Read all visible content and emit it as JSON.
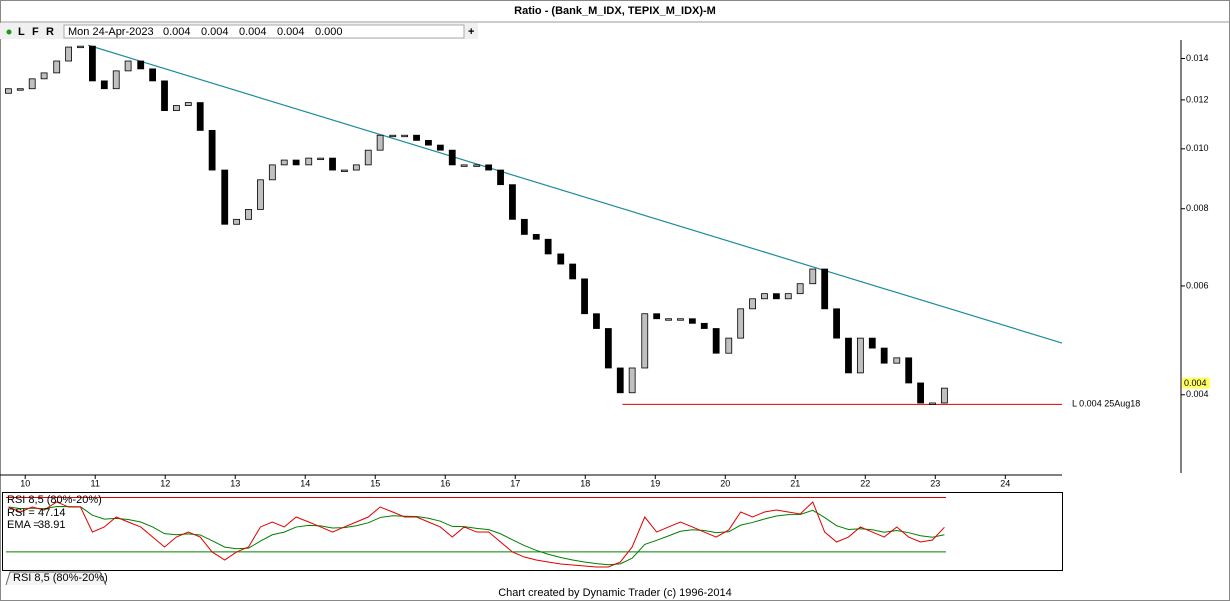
{
  "window_title": "Ratio - (Bank_M_IDX, TEPIX_M_IDX)-M",
  "info_bar": {
    "flags": [
      "L",
      "F",
      "R"
    ],
    "date": "Mon 24-Apr-2023",
    "values": [
      "0.004",
      "0.004",
      "0.004",
      "0.004",
      "0.000"
    ]
  },
  "tabs": [
    "RSI 8,5 (80%-20%)"
  ],
  "footer": "Chart created by Dynamic Trader  (c) 1996-2014",
  "chart_data": [
    {
      "type": "candlestick",
      "log_scale": true,
      "up_color": "#c0c0c0",
      "down_color": "#000000",
      "xlim": [
        9.64,
        24.81
      ],
      "xticks": [
        10,
        11,
        12,
        13,
        14,
        15,
        16,
        17,
        18,
        19,
        20,
        21,
        22,
        23,
        24
      ],
      "ylim": [
        0.003,
        0.015
      ],
      "yticks": [
        0.004,
        0.006,
        0.008,
        {
          "value": 0.01,
          "label": "0.010"
        },
        0.012,
        0.014
      ],
      "x": [
        9.76,
        9.93,
        10.1,
        10.27,
        10.45,
        10.62,
        10.79,
        10.96,
        11.13,
        11.3,
        11.47,
        11.65,
        11.82,
        11.99,
        12.16,
        12.33,
        12.5,
        12.67,
        12.85,
        13.02,
        13.19,
        13.36,
        13.53,
        13.7,
        13.87,
        14.05,
        14.22,
        14.39,
        14.56,
        14.73,
        14.9,
        15.07,
        15.25,
        15.42,
        15.59,
        15.76,
        15.93,
        16.1,
        16.27,
        16.45,
        16.62,
        16.79,
        16.96,
        17.13,
        17.3,
        17.47,
        17.65,
        17.82,
        17.99,
        18.16,
        18.33,
        18.5,
        18.67,
        18.85,
        19.02,
        19.19,
        19.36,
        19.53,
        19.7,
        19.87,
        20.05,
        20.22,
        20.39,
        20.56,
        20.73,
        20.9,
        21.07,
        21.25,
        21.42,
        21.59,
        21.76,
        21.93,
        22.1,
        22.27,
        22.45,
        22.62,
        22.79,
        22.96,
        23.13
      ],
      "open": [
        0.0123,
        0.01251,
        0.01251,
        0.01298,
        0.01327,
        0.01387,
        0.01461,
        0.01466,
        0.01288,
        0.01251,
        0.01337,
        0.01387,
        0.01347,
        0.01288,
        0.01153,
        0.01175,
        0.01188,
        0.01071,
        0.00924,
        0.00755,
        0.00769,
        0.00798,
        0.00891,
        0.00942,
        0.00959,
        0.00942,
        0.00966,
        0.00966,
        0.00924,
        0.00924,
        0.00942,
        0.00995,
        0.01052,
        0.01052,
        0.01052,
        0.01032,
        0.01014,
        0.00995,
        0.00942,
        0.00942,
        0.00942,
        0.00924,
        0.00875,
        0.00769,
        0.00727,
        0.00714,
        0.00676,
        0.00651,
        0.00616,
        0.00541,
        0.00512,
        0.00442,
        0.00403,
        0.00442,
        0.00541,
        0.00531,
        0.00531,
        0.00531,
        0.00522,
        0.00512,
        0.00467,
        0.00494,
        0.00551,
        0.00572,
        0.00583,
        0.00572,
        0.00583,
        0.00605,
        0.00639,
        0.00551,
        0.00494,
        0.00434,
        0.00494,
        0.00476,
        0.0045,
        0.00459,
        0.00418,
        0.00388,
        0.00388
      ],
      "close": [
        0.01251,
        0.01251,
        0.01298,
        0.01327,
        0.01387,
        0.01461,
        0.01466,
        0.01288,
        0.01251,
        0.01337,
        0.01387,
        0.01347,
        0.01288,
        0.01153,
        0.01175,
        0.01188,
        0.01071,
        0.00924,
        0.00755,
        0.00769,
        0.00798,
        0.00891,
        0.00942,
        0.00959,
        0.00942,
        0.00966,
        0.00966,
        0.00924,
        0.00924,
        0.00942,
        0.00995,
        0.01052,
        0.01052,
        0.01052,
        0.01032,
        0.01014,
        0.00995,
        0.00942,
        0.00942,
        0.00942,
        0.00924,
        0.00875,
        0.00769,
        0.00727,
        0.00714,
        0.00676,
        0.00651,
        0.00616,
        0.00541,
        0.00512,
        0.00442,
        0.00403,
        0.00442,
        0.00541,
        0.00531,
        0.00531,
        0.00531,
        0.00522,
        0.00512,
        0.00467,
        0.00494,
        0.00551,
        0.00572,
        0.00583,
        0.00572,
        0.00583,
        0.00605,
        0.00639,
        0.00551,
        0.00494,
        0.00434,
        0.00494,
        0.00476,
        0.0045,
        0.00459,
        0.00418,
        0.00388,
        0.00388,
        0.0041
      ],
      "trendline": {
        "color": "#1b8c9c",
        "points": [
          [
            10.9,
            0.01471
          ],
          [
            24.81,
            0.00485
          ]
        ]
      },
      "support": {
        "value": 0.00386,
        "start": 18.53,
        "color": "#e00000",
        "label": "L 0.004 25Aug18"
      },
      "last_price": {
        "value": 0.00417,
        "label": "0.004",
        "color": "#ffff66"
      }
    },
    {
      "type": "line",
      "title": "RSI 8,5 (80%-20%)",
      "ylim": [
        0,
        85
      ],
      "levels": [
        {
          "value": 80,
          "color": "#e00000"
        },
        {
          "value": 20,
          "color": "#008000"
        }
      ],
      "series": [
        {
          "name": "RSI =",
          "color": "#e00000",
          "values": [
            69.5,
            64.0,
            69.5,
            66.2,
            75.1,
            69.5,
            69.5,
            41.9,
            47.5,
            58.5,
            53.0,
            47.5,
            36.4,
            25.4,
            36.4,
            41.9,
            36.4,
            19.9,
            11.0,
            19.9,
            25.4,
            47.5,
            53.0,
            47.5,
            58.5,
            53.0,
            47.5,
            41.9,
            47.5,
            53.0,
            58.5,
            69.5,
            64.0,
            58.5,
            58.5,
            53.0,
            47.5,
            36.4,
            47.5,
            41.9,
            41.9,
            30.9,
            19.9,
            14.3,
            11.0,
            8.8,
            6.6,
            5.5,
            4.4,
            3.3,
            3.3,
            8.8,
            25.4,
            58.5,
            41.9,
            47.5,
            53.0,
            47.5,
            41.9,
            36.4,
            44.2,
            64.0,
            58.5,
            64.0,
            66.2,
            64.0,
            61.8,
            75.1,
            41.9,
            30.9,
            36.4,
            47.5,
            41.9,
            36.4,
            47.5,
            36.4,
            30.9,
            33.1,
            47.14
          ]
        },
        {
          "name": "EMA =",
          "color": "#008000",
          "values": [
            69.5,
            67.7,
            68.3,
            67.6,
            70.1,
            69.9,
            69.8,
            60.5,
            56.2,
            57.0,
            55.7,
            53.0,
            47.5,
            40.1,
            38.9,
            39.9,
            38.7,
            32.4,
            25.3,
            23.5,
            24.1,
            31.9,
            38.9,
            41.8,
            47.4,
            49.3,
            48.7,
            46.4,
            46.8,
            48.9,
            52.1,
            57.9,
            59.9,
            59.4,
            59.1,
            57.1,
            53.9,
            48.1,
            47.9,
            45.9,
            44.6,
            40.0,
            33.3,
            27.0,
            21.7,
            17.4,
            13.8,
            11.0,
            8.8,
            7.0,
            5.8,
            6.8,
            13.0,
            28.2,
            32.8,
            37.7,
            42.8,
            44.4,
            43.6,
            41.2,
            42.2,
            49.5,
            52.5,
            56.3,
            59.6,
            61.1,
            61.3,
            65.9,
            57.9,
            48.9,
            44.7,
            45.6,
            44.4,
            41.7,
            43.6,
            41.2,
            37.8,
            36.2,
            38.91
          ]
        }
      ]
    }
  ]
}
